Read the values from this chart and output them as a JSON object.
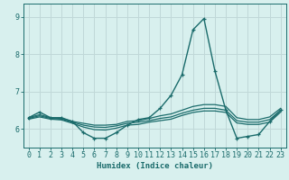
{
  "xlabel": "Humidex (Indice chaleur)",
  "xlim": [
    -0.5,
    23.5
  ],
  "ylim": [
    5.5,
    9.35
  ],
  "yticks": [
    6,
    7,
    8,
    9
  ],
  "xticks": [
    0,
    1,
    2,
    3,
    4,
    5,
    6,
    7,
    8,
    9,
    10,
    11,
    12,
    13,
    14,
    15,
    16,
    17,
    18,
    19,
    20,
    21,
    22,
    23
  ],
  "bg_color": "#d8f0ee",
  "line_color": "#1a6b6b",
  "grid_color": "#c0d8d8",
  "lines": [
    {
      "x": [
        0,
        1,
        2,
        3,
        4,
        5,
        6,
        7,
        8,
        9,
        10,
        11,
        12,
        13,
        14,
        15,
        16,
        17,
        18,
        19,
        20,
        21,
        22,
        23
      ],
      "y": [
        6.3,
        6.45,
        6.3,
        6.3,
        6.2,
        5.9,
        5.75,
        5.75,
        5.9,
        6.1,
        6.25,
        6.3,
        6.55,
        6.9,
        7.45,
        8.65,
        8.95,
        7.55,
        6.5,
        5.75,
        5.8,
        5.85,
        6.2,
        6.5
      ],
      "marker": "+",
      "lw": 1.0
    },
    {
      "x": [
        0,
        1,
        2,
        3,
        4,
        5,
        6,
        7,
        8,
        9,
        10,
        11,
        12,
        13,
        14,
        15,
        16,
        17,
        18,
        19,
        20,
        21,
        22,
        23
      ],
      "y": [
        6.3,
        6.38,
        6.3,
        6.28,
        6.2,
        6.15,
        6.1,
        6.1,
        6.12,
        6.2,
        6.22,
        6.28,
        6.35,
        6.4,
        6.5,
        6.6,
        6.65,
        6.65,
        6.6,
        6.3,
        6.25,
        6.25,
        6.32,
        6.55
      ],
      "marker": null,
      "lw": 0.9
    },
    {
      "x": [
        0,
        1,
        2,
        3,
        4,
        5,
        6,
        7,
        8,
        9,
        10,
        11,
        12,
        13,
        14,
        15,
        16,
        17,
        18,
        19,
        20,
        21,
        22,
        23
      ],
      "y": [
        6.28,
        6.35,
        6.28,
        6.26,
        6.18,
        6.1,
        6.05,
        6.04,
        6.08,
        6.15,
        6.18,
        6.22,
        6.28,
        6.32,
        6.42,
        6.5,
        6.55,
        6.55,
        6.5,
        6.22,
        6.18,
        6.18,
        6.25,
        6.5
      ],
      "marker": null,
      "lw": 0.9
    },
    {
      "x": [
        0,
        1,
        2,
        3,
        4,
        5,
        6,
        7,
        8,
        9,
        10,
        11,
        12,
        13,
        14,
        15,
        16,
        17,
        18,
        19,
        20,
        21,
        22,
        23
      ],
      "y": [
        6.26,
        6.32,
        6.26,
        6.24,
        6.15,
        6.05,
        5.98,
        5.97,
        6.02,
        6.1,
        6.12,
        6.18,
        6.22,
        6.26,
        6.36,
        6.44,
        6.48,
        6.48,
        6.44,
        6.16,
        6.12,
        6.12,
        6.18,
        6.45
      ],
      "marker": null,
      "lw": 0.9
    }
  ]
}
